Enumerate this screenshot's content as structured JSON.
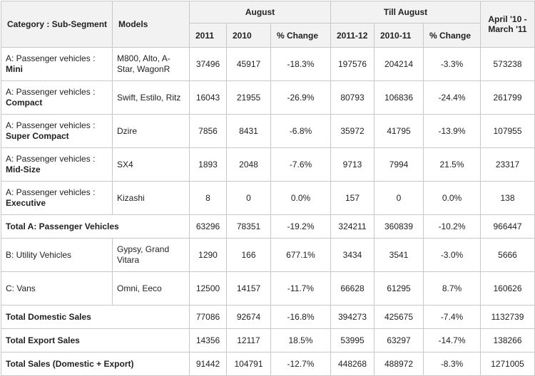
{
  "headers": {
    "category": "Category : Sub-Segment",
    "models": "Models",
    "august": "August",
    "till_august": "Till August",
    "annual": "April '10 - March '11",
    "aug_2011": "2011",
    "aug_2010": "2010",
    "aug_change": "% Change",
    "till_2011_12": "2011-12",
    "till_2010_11": "2010-11",
    "till_change": "% Change"
  },
  "rows": [
    {
      "cat_prefix": "A: Passenger vehicles :",
      "cat_bold": "Mini",
      "models": "M800, Alto, A-Star, WagonR",
      "aug_2011": "37496",
      "aug_2010": "45917",
      "aug_change": "-18.3%",
      "till_2011_12": "197576",
      "till_2010_11": "204214",
      "till_change": "-3.3%",
      "annual": "573238"
    },
    {
      "cat_prefix": "A: Passenger vehicles :",
      "cat_bold": "Compact",
      "models": "Swift, Estilo, Ritz",
      "aug_2011": "16043",
      "aug_2010": "21955",
      "aug_change": "-26.9%",
      "till_2011_12": "80793",
      "till_2010_11": "106836",
      "till_change": "-24.4%",
      "annual": "261799"
    },
    {
      "cat_prefix": "A: Passenger vehicles :",
      "cat_bold": "Super Compact",
      "models": "Dzire",
      "aug_2011": "7856",
      "aug_2010": "8431",
      "aug_change": "-6.8%",
      "till_2011_12": "35972",
      "till_2010_11": "41795",
      "till_change": "-13.9%",
      "annual": "107955"
    },
    {
      "cat_prefix": "A: Passenger vehicles :",
      "cat_bold": "Mid-Size",
      "models": "SX4",
      "aug_2011": "1893",
      "aug_2010": "2048",
      "aug_change": "-7.6%",
      "till_2011_12": "9713",
      "till_2010_11": "7994",
      "till_change": "21.5%",
      "annual": "23317"
    },
    {
      "cat_prefix": "A: Passenger vehicles :",
      "cat_bold": "Executive",
      "models": "Kizashi",
      "aug_2011": "8",
      "aug_2010": "0",
      "aug_change": "0.0%",
      "till_2011_12": "157",
      "till_2010_11": "0",
      "till_change": "0.0%",
      "annual": "138"
    }
  ],
  "total_passenger": {
    "label": "Total A: Passenger Vehicles",
    "aug_2011": "63296",
    "aug_2010": "78351",
    "aug_change": "-19.2%",
    "till_2011_12": "324211",
    "till_2010_11": "360839",
    "till_change": "-10.2%",
    "annual": "966447"
  },
  "other_rows": [
    {
      "category": "B: Utility Vehicles",
      "models": "Gypsy, Grand Vitara",
      "aug_2011": "1290",
      "aug_2010": "166",
      "aug_change": "677.1%",
      "till_2011_12": "3434",
      "till_2010_11": "3541",
      "till_change": "-3.0%",
      "annual": "5666"
    },
    {
      "category": "C: Vans",
      "models": "Omni, Eeco",
      "aug_2011": "12500",
      "aug_2010": "14157",
      "aug_change": "-11.7%",
      "till_2011_12": "66628",
      "till_2010_11": "61295",
      "till_change": "8.7%",
      "annual": "160626"
    }
  ],
  "totals": [
    {
      "label": "Total Domestic Sales",
      "aug_2011": "77086",
      "aug_2010": "92674",
      "aug_change": "-16.8%",
      "till_2011_12": "394273",
      "till_2010_11": "425675",
      "till_change": "-7.4%",
      "annual": "1132739"
    },
    {
      "label": "Total Export Sales",
      "aug_2011": "14356",
      "aug_2010": "12117",
      "aug_change": "18.5%",
      "till_2011_12": "53995",
      "till_2010_11": "63297",
      "till_change": "-14.7%",
      "annual": "138266"
    },
    {
      "label": "Total Sales (Domestic + Export)",
      "aug_2011": "91442",
      "aug_2010": "104791",
      "aug_change": "-12.7%",
      "till_2011_12": "448268",
      "till_2010_11": "488972",
      "till_change": "-8.3%",
      "annual": "1271005"
    }
  ]
}
